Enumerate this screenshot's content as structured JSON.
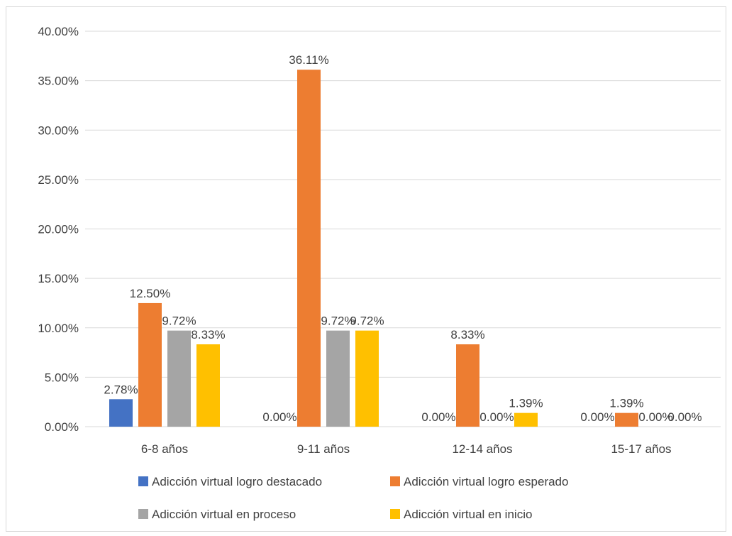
{
  "chart_data": {
    "type": "bar",
    "categories": [
      "6-8 años",
      "9-11 años",
      "12-14 años",
      "15-17 años"
    ],
    "series": [
      {
        "name": "Adicción virtual logro destacado",
        "color": "#4472C4",
        "values": [
          2.78,
          0.0,
          0.0,
          0.0
        ],
        "labels": [
          "2.78%",
          "0.00%",
          "0.00%",
          "0.00%"
        ]
      },
      {
        "name": "Adicción virtual logro esperado",
        "color": "#ED7D31",
        "values": [
          12.5,
          36.11,
          8.33,
          1.39
        ],
        "labels": [
          "12.50%",
          "36.11%",
          "8.33%",
          "1.39%"
        ]
      },
      {
        "name": "Adicción virtual en proceso",
        "color": "#A5A5A5",
        "values": [
          9.72,
          9.72,
          0.0,
          0.0
        ],
        "labels": [
          "9.72%",
          "9.72%",
          "0.00%",
          "0.00%"
        ]
      },
      {
        "name": "Adicción virtual en inicio",
        "color": "#FFC000",
        "values": [
          8.33,
          9.72,
          1.39,
          0.0
        ],
        "labels": [
          "8.33%",
          "9.72%",
          "1.39%",
          "0.00%"
        ]
      }
    ],
    "ylim": [
      0,
      40
    ],
    "yticks": [
      "0.00%",
      "5.00%",
      "10.00%",
      "15.00%",
      "20.00%",
      "25.00%",
      "30.00%",
      "35.00%",
      "40.00%"
    ],
    "grid": true,
    "legend_position": "bottom",
    "title": "",
    "xlabel": "",
    "ylabel": ""
  }
}
